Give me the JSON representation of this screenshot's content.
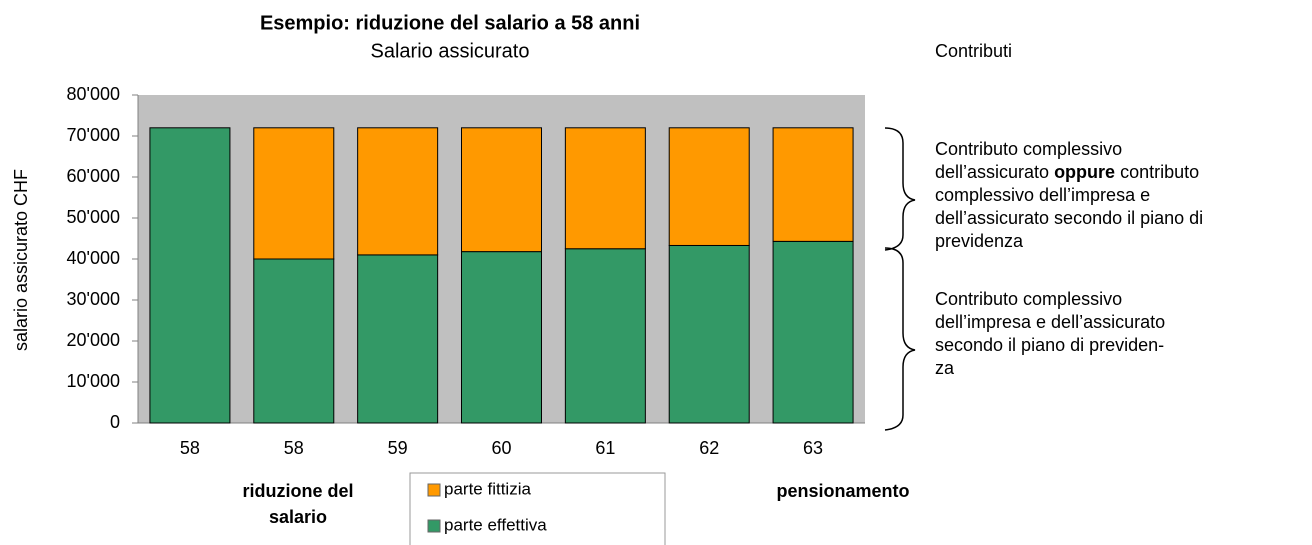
{
  "chart_data": {
    "type": "stacked_bar",
    "title": "Esempio: riduzione del salario a 58 anni",
    "subtitle": "Salario assicurato",
    "side_title": "Contributi",
    "y_label": "salario assicurato CHF",
    "categories": [
      "58",
      "58",
      "59",
      "60",
      "61",
      "62",
      "63"
    ],
    "series": [
      {
        "name": "parte fittizia",
        "color": "#ff9900",
        "values": [
          0,
          32000,
          31000,
          30200,
          29500,
          28700,
          27700
        ]
      },
      {
        "name": "parte effettiva",
        "color": "#339966",
        "values": [
          72000,
          40000,
          41000,
          41800,
          42500,
          43300,
          44300
        ]
      }
    ],
    "ylim": [
      0,
      80000
    ],
    "yticks": [
      0,
      {
        "value": 10000,
        "label": "10'000"
      },
      {
        "value": 20000,
        "label": "20'000"
      },
      {
        "value": 30000,
        "label": "30'000"
      },
      {
        "value": 40000,
        "label": "40'000"
      },
      {
        "value": 50000,
        "label": "50'000"
      },
      {
        "value": 60000,
        "label": "60'000"
      },
      {
        "value": 70000,
        "label": "70'000"
      },
      {
        "value": 80000,
        "label": "80'000"
      }
    ],
    "annotations": [
      {
        "lines": [
          [
            {
              "text": "Contributo complessivo",
              "bold": false
            }
          ],
          [
            {
              "text": "dell’assicurato ",
              "bold": false
            },
            {
              "text": "oppure",
              "bold": true
            },
            {
              "text": " contributo",
              "bold": false
            }
          ],
          [
            {
              "text": "complessivo dell’impresa e",
              "bold": false
            }
          ],
          [
            {
              "text": "dell’assicurato secondo il piano di",
              "bold": false
            }
          ],
          [
            {
              "text": "previdenza",
              "bold": false
            }
          ]
        ]
      },
      {
        "lines": [
          [
            {
              "text": "Contributo complessivo",
              "bold": false
            }
          ],
          [
            {
              "text": "dell’impresa e dell’assicurato",
              "bold": false
            }
          ],
          [
            {
              "text": "secondo il piano di previden-",
              "bold": false
            }
          ],
          [
            {
              "text": "za",
              "bold": false
            }
          ]
        ]
      }
    ],
    "bottom_left": [
      "riduzione del",
      "salario"
    ],
    "bottom_right": "pensionamento"
  }
}
